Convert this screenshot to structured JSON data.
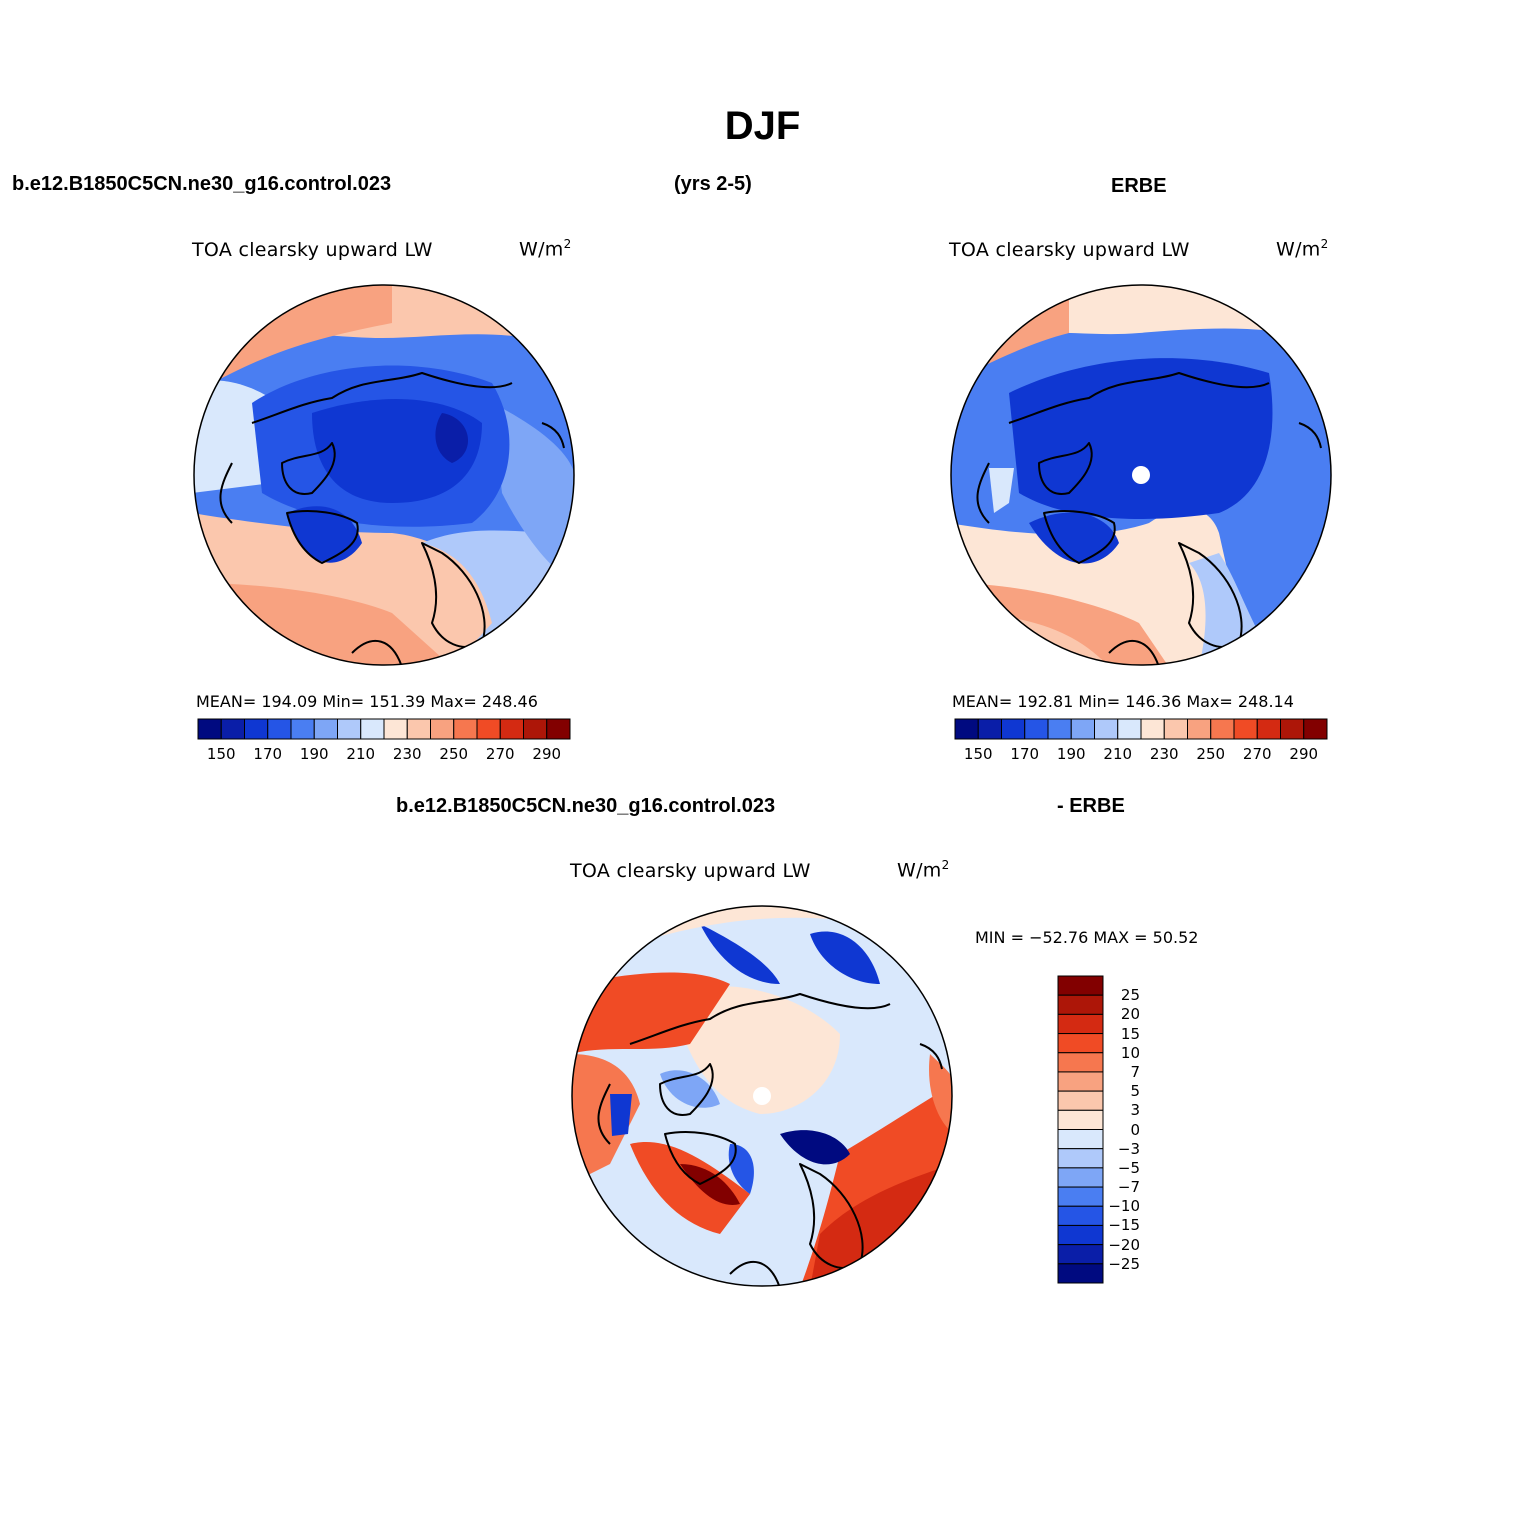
{
  "page": {
    "title": "DJF",
    "header_left": "b.e12.B1850C5CN.ne30_g16.control.023",
    "header_mid": "(yrs 2-5)",
    "header_right": "ERBE",
    "diff_header_left": "b.e12.B1850C5CN.ne30_g16.control.023",
    "diff_header_right": "- ERBE"
  },
  "panels": [
    {
      "variable": "TOA clearsky upward LW",
      "units_base": "W/m",
      "units_exp": "2",
      "stats": "MEAN= 194.09   Min= 151.39   Max= 248.46"
    },
    {
      "variable": "TOA clearsky upward LW",
      "units_base": "W/m",
      "units_exp": "2",
      "stats": "MEAN= 192.81   Min= 146.36   Max= 248.14"
    },
    {
      "variable": "TOA clearsky upward LW",
      "units_base": "W/m",
      "units_exp": "2",
      "stats": "MIN = −52.76  MAX =   50.52"
    }
  ],
  "colorbar_abs": {
    "colors": [
      "#000a80",
      "#0a1ea8",
      "#0f37d2",
      "#2555e6",
      "#4a7ef2",
      "#7ea6f6",
      "#afc9fa",
      "#d9e8fc",
      "#fde6d6",
      "#fbc7ad",
      "#f8a280",
      "#f6774f",
      "#f04b25",
      "#d42a12",
      "#ad1608",
      "#820000"
    ],
    "tick_labels": [
      "150",
      "170",
      "190",
      "210",
      "230",
      "250",
      "270",
      "290"
    ]
  },
  "colorbar_diff": {
    "colors": [
      "#820000",
      "#ad1608",
      "#d42a12",
      "#f04b25",
      "#f6774f",
      "#f8a280",
      "#fbc7ad",
      "#fde6d6",
      "#d9e8fc",
      "#afc9fa",
      "#7ea6f6",
      "#4a7ef2",
      "#2555e6",
      "#0f37d2",
      "#0a1ea8",
      "#000a80"
    ],
    "tick_labels": [
      "25",
      "20",
      "15",
      "10",
      "7",
      "5",
      "3",
      "0",
      "−3",
      "−5",
      "−7",
      "−10",
      "−15",
      "−20",
      "−25"
    ]
  }
}
